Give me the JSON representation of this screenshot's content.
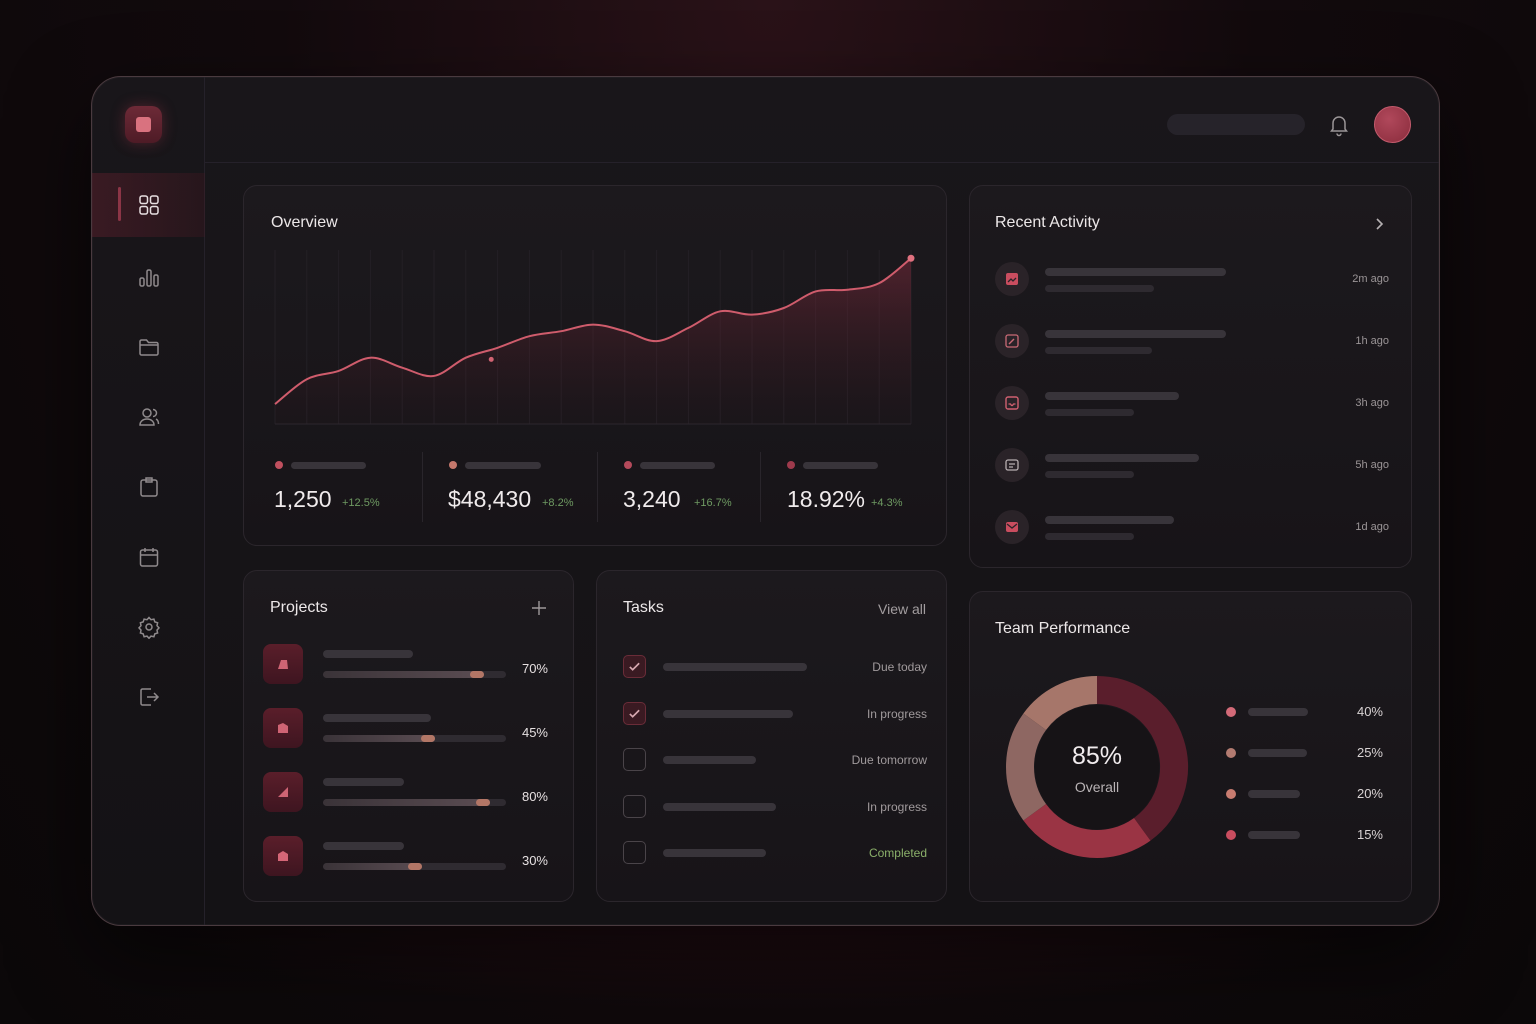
{
  "theme": {
    "accent": "#b0485b",
    "positive": "#6f9a62",
    "completed": "#8bb06a",
    "background": "#141215"
  },
  "sidebar": {
    "logo_icon": "app-logo-icon",
    "items": [
      {
        "icon": "grid-icon",
        "active": true
      },
      {
        "icon": "bar-chart-icon",
        "active": false
      },
      {
        "icon": "folder-icon",
        "active": false
      },
      {
        "icon": "users-icon",
        "active": false
      },
      {
        "icon": "clipboard-icon",
        "active": false
      },
      {
        "icon": "calendar-icon",
        "active": false
      },
      {
        "icon": "settings-icon",
        "active": false
      },
      {
        "icon": "logout-icon",
        "active": false
      }
    ]
  },
  "header": {
    "search_icon": "search-bar",
    "bell_icon": "bell-icon",
    "avatar": "user-avatar"
  },
  "overview": {
    "title": "Overview",
    "stats": [
      {
        "value": "1,250",
        "delta": "+12.5%",
        "color": "#c0505f"
      },
      {
        "value": "$48,430",
        "delta": "+8.2%",
        "color": "#c5786c"
      },
      {
        "value": "3,240",
        "delta": "+16.7%",
        "color": "#b44a5b"
      },
      {
        "value": "18.92%",
        "delta": "+4.3%",
        "color": "#9e3a4c"
      }
    ]
  },
  "chart_data": {
    "type": "area",
    "title": "Overview",
    "xlabel": "",
    "ylabel": "",
    "x": [
      0,
      1,
      2,
      3,
      4,
      5,
      6,
      7,
      8,
      9,
      10,
      11,
      12,
      13,
      14,
      15,
      16,
      17,
      18,
      19,
      20
    ],
    "series": [
      {
        "values": [
          12,
          27,
          32,
          40,
          34,
          29,
          40,
          46,
          53,
          56,
          60,
          56,
          50,
          58,
          68,
          66,
          70,
          80,
          81,
          85,
          100
        ]
      }
    ],
    "ylim": [
      0,
      105
    ],
    "grid": true
  },
  "recent_activity": {
    "title": "Recent Activity",
    "chevron_icon": "chevron-right-icon",
    "items": [
      {
        "icon": "image-icon",
        "time": "2m ago",
        "line1": 0.73,
        "line2": 0.44
      },
      {
        "icon": "edit-icon",
        "time": "1h ago",
        "line1": 0.73,
        "line2": 0.43
      },
      {
        "icon": "inbox-icon",
        "time": "3h ago",
        "line1": 0.54,
        "line2": 0.36
      },
      {
        "icon": "user-card-icon",
        "time": "5h ago",
        "line1": 0.62,
        "line2": 0.36
      },
      {
        "icon": "mail-icon",
        "time": "1d ago",
        "line1": 0.52,
        "line2": 0.36
      }
    ]
  },
  "projects": {
    "title": "Projects",
    "add_icon": "plus-icon",
    "items": [
      {
        "percent_label": "70%",
        "progress": 0.88,
        "label_bar": 0.5
      },
      {
        "percent_label": "45%",
        "progress": 0.61,
        "label_bar": 0.6
      },
      {
        "percent_label": "80%",
        "progress": 0.91,
        "label_bar": 0.45
      },
      {
        "percent_label": "30%",
        "progress": 0.54,
        "label_bar": 0.45
      }
    ]
  },
  "tasks": {
    "title": "Tasks",
    "view_all": "View all",
    "items": [
      {
        "checked": true,
        "status": "Due today",
        "bar": 0.85,
        "done": false
      },
      {
        "checked": true,
        "status": "In progress",
        "bar": 0.77,
        "done": false
      },
      {
        "checked": false,
        "status": "Due tomorrow",
        "bar": 0.55,
        "done": false
      },
      {
        "checked": false,
        "status": "In progress",
        "bar": 0.67,
        "done": false
      },
      {
        "checked": false,
        "status": "Completed",
        "bar": 0.61,
        "done": true
      }
    ]
  },
  "team_performance": {
    "title": "Team Performance",
    "center_value": "85%",
    "center_label": "Overall",
    "segments": [
      {
        "percent": 40,
        "label": "40%",
        "color": "#d36a78",
        "ring_color": "#5a1e2c",
        "bar": 0.72
      },
      {
        "percent": 25,
        "label": "25%",
        "color": "#b37b71",
        "ring_color": "#9a3444",
        "bar": 0.7
      },
      {
        "percent": 20,
        "label": "20%",
        "color": "#c87c70",
        "ring_color": "#8e6762",
        "bar": 0.62
      },
      {
        "percent": 15,
        "label": "15%",
        "color": "#c94d5f",
        "ring_color": "#a6766a",
        "bar": 0.62
      }
    ]
  }
}
